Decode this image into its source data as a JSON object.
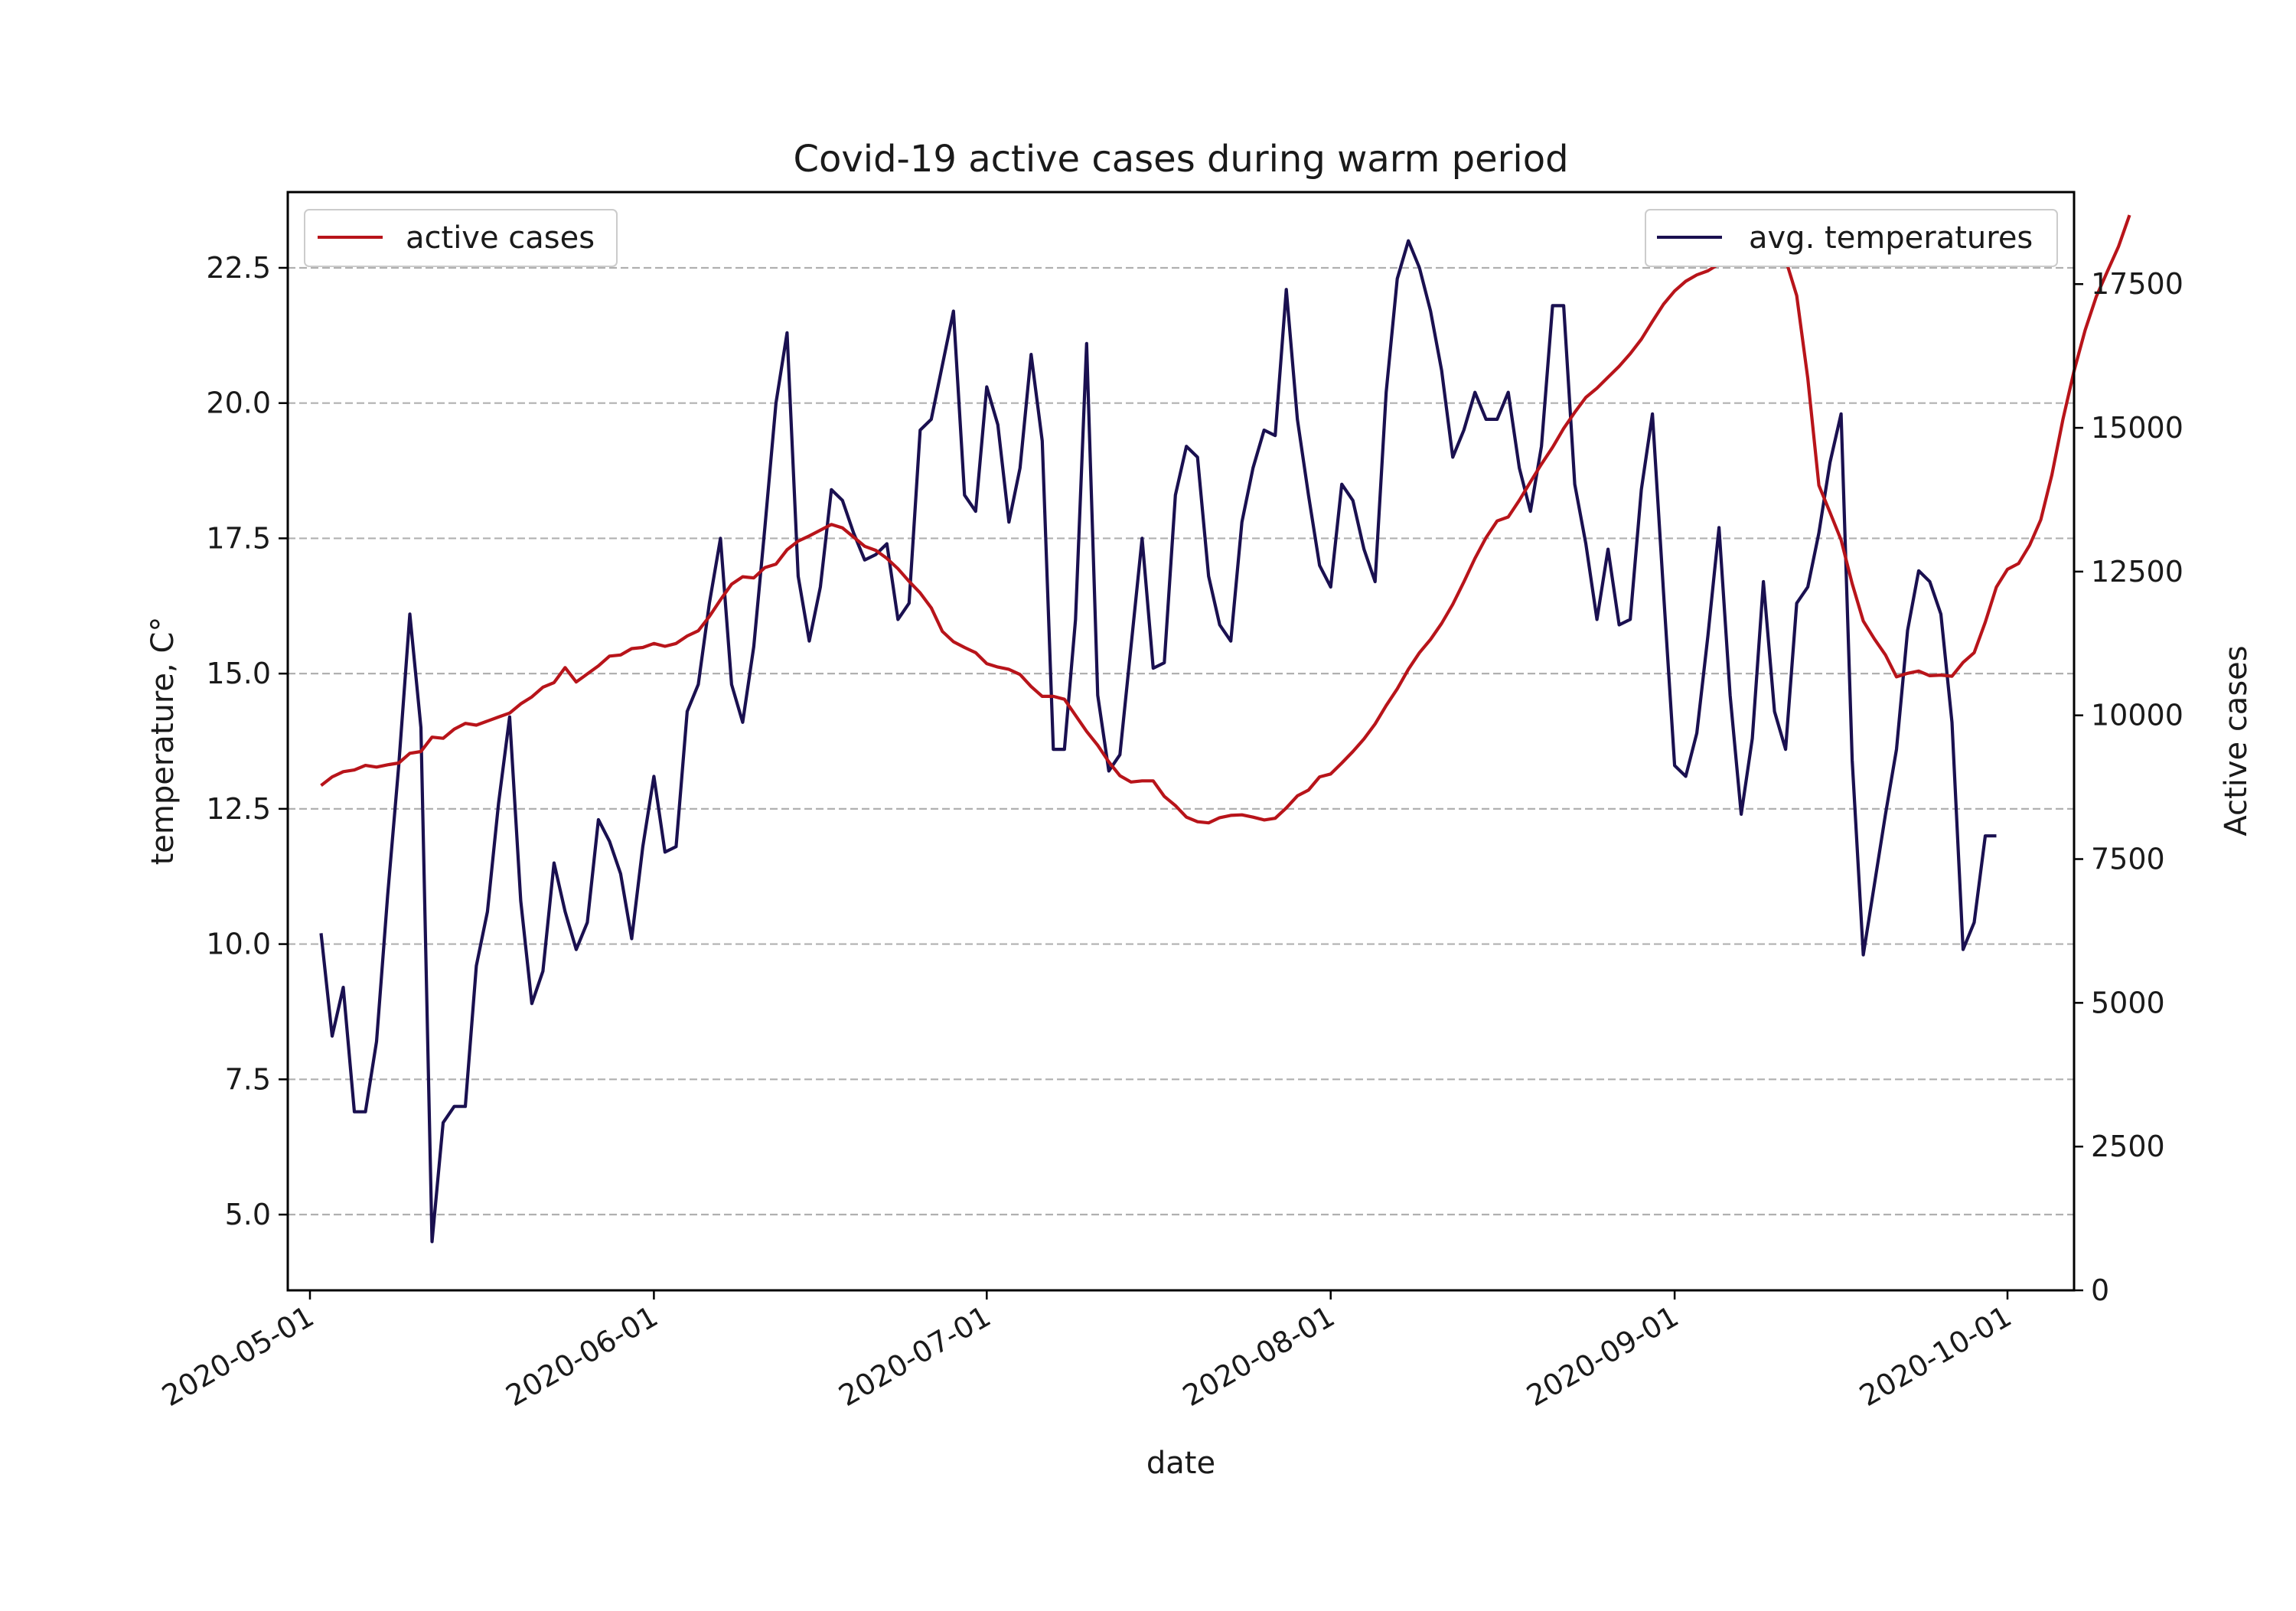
{
  "chart_data": {
    "type": "line",
    "title": "Covid-19 active cases during warm period",
    "xlabel": "date",
    "ylabel_left": "temperature, C°",
    "ylabel_right": "Active cases",
    "x_ticks": [
      "2020-05-01",
      "2020-06-01",
      "2020-07-01",
      "2020-08-01",
      "2020-09-01",
      "2020-10-01"
    ],
    "x_range": [
      "2020-04-29",
      "2020-10-07"
    ],
    "y_left_ticks": [
      "5.0",
      "7.5",
      "10.0",
      "12.5",
      "15.0",
      "17.5",
      "20.0",
      "22.5"
    ],
    "y_left_range": [
      3.6,
      23.9
    ],
    "y_right_ticks": [
      "0",
      "2500",
      "5000",
      "7500",
      "10000",
      "12500",
      "15000",
      "17500"
    ],
    "y_right_range": [
      0,
      19100
    ],
    "grid": "horizontal dashed (left axis)",
    "legend_left": {
      "placement": "top-left",
      "label": "active cases"
    },
    "legend_right": {
      "placement": "top-right",
      "label": "avg. temperatures"
    },
    "start_date": "2020-05-02",
    "series": [
      {
        "name": "avg. temperatures",
        "axis": "left",
        "color": "#1a1050",
        "values": [
          10.2,
          8.3,
          9.2,
          6.9,
          6.9,
          8.2,
          10.9,
          13.3,
          16.1,
          14.0,
          4.5,
          6.7,
          7.0,
          7.0,
          9.6,
          10.6,
          12.6,
          14.2,
          10.8,
          8.9,
          9.5,
          11.5,
          10.6,
          9.9,
          10.4,
          12.3,
          11.9,
          11.3,
          10.1,
          11.8,
          13.1,
          11.7,
          11.8,
          14.3,
          14.8,
          16.3,
          17.5,
          14.8,
          14.1,
          15.5,
          17.7,
          20.0,
          21.3,
          16.8,
          15.6,
          16.6,
          18.4,
          18.2,
          17.6,
          17.1,
          17.2,
          17.4,
          16.0,
          16.3,
          19.5,
          19.7,
          20.7,
          21.7,
          18.3,
          18.0,
          20.3,
          19.6,
          17.8,
          18.8,
          20.9,
          19.3,
          13.6,
          13.6,
          16.0,
          21.1,
          14.6,
          13.2,
          13.5,
          15.5,
          17.5,
          15.1,
          15.2,
          18.3,
          19.2,
          19.0,
          16.8,
          15.9,
          15.6,
          17.8,
          18.8,
          19.5,
          19.4,
          22.1,
          19.7,
          18.3,
          17.0,
          16.6,
          18.5,
          18.2,
          17.3,
          16.7,
          20.2,
          22.3,
          23.0,
          22.5,
          21.7,
          20.6,
          19.0,
          19.5,
          20.2,
          19.7,
          19.7,
          20.2,
          18.8,
          18.0,
          19.2,
          21.8,
          21.8,
          18.5,
          17.4,
          16.0,
          17.3,
          15.9,
          16.0,
          18.4,
          19.8,
          16.5,
          13.3,
          13.1,
          13.9,
          15.7,
          17.7,
          14.6,
          12.4,
          13.8,
          16.7,
          14.3,
          13.6,
          16.3,
          16.6,
          17.6,
          18.9,
          19.8,
          13.4,
          9.8,
          11.1,
          12.4,
          13.6,
          15.8,
          16.9,
          16.7,
          16.1,
          14.1,
          9.9,
          10.4,
          12.0,
          12.0
        ]
      },
      {
        "name": "active cases",
        "axis": "right",
        "color": "#b8141a",
        "values": [
          8780,
          8930,
          9020,
          9050,
          9130,
          9100,
          9140,
          9170,
          9340,
          9370,
          9620,
          9600,
          9760,
          9860,
          9830,
          9900,
          9970,
          10040,
          10200,
          10320,
          10490,
          10570,
          10830,
          10580,
          10720,
          10860,
          11030,
          11050,
          11160,
          11180,
          11250,
          11200,
          11250,
          11380,
          11470,
          11720,
          12010,
          12280,
          12410,
          12390,
          12570,
          12630,
          12880,
          13030,
          13120,
          13220,
          13320,
          13260,
          13100,
          12940,
          12870,
          12730,
          12550,
          12330,
          12130,
          11870,
          11460,
          11280,
          11180,
          11090,
          10900,
          10840,
          10800,
          10710,
          10500,
          10330,
          10330,
          10280,
          10000,
          9720,
          9480,
          9190,
          8950,
          8840,
          8860,
          8860,
          8590,
          8430,
          8230,
          8150,
          8130,
          8220,
          8260,
          8270,
          8230,
          8180,
          8210,
          8390,
          8600,
          8700,
          8930,
          8980,
          9170,
          9370,
          9590,
          9850,
          10170,
          10460,
          10800,
          11090,
          11320,
          11600,
          11930,
          12320,
          12730,
          13090,
          13380,
          13450,
          13740,
          14060,
          14370,
          14660,
          14990,
          15270,
          15530,
          15690,
          15880,
          16070,
          16290,
          16540,
          16850,
          17150,
          17380,
          17550,
          17660,
          17730,
          17850,
          17930,
          18050,
          18220,
          18330,
          18120,
          17930,
          17300,
          15860,
          14000,
          13530,
          13050,
          12290,
          11640,
          11330,
          11050,
          10670,
          10730,
          10770,
          10690,
          10700,
          10680,
          10920,
          11090,
          11620,
          12230,
          12540,
          12640,
          12960,
          13400,
          14180,
          15150,
          15990,
          16700,
          17280,
          17720,
          18150,
          18700
        ]
      }
    ]
  }
}
